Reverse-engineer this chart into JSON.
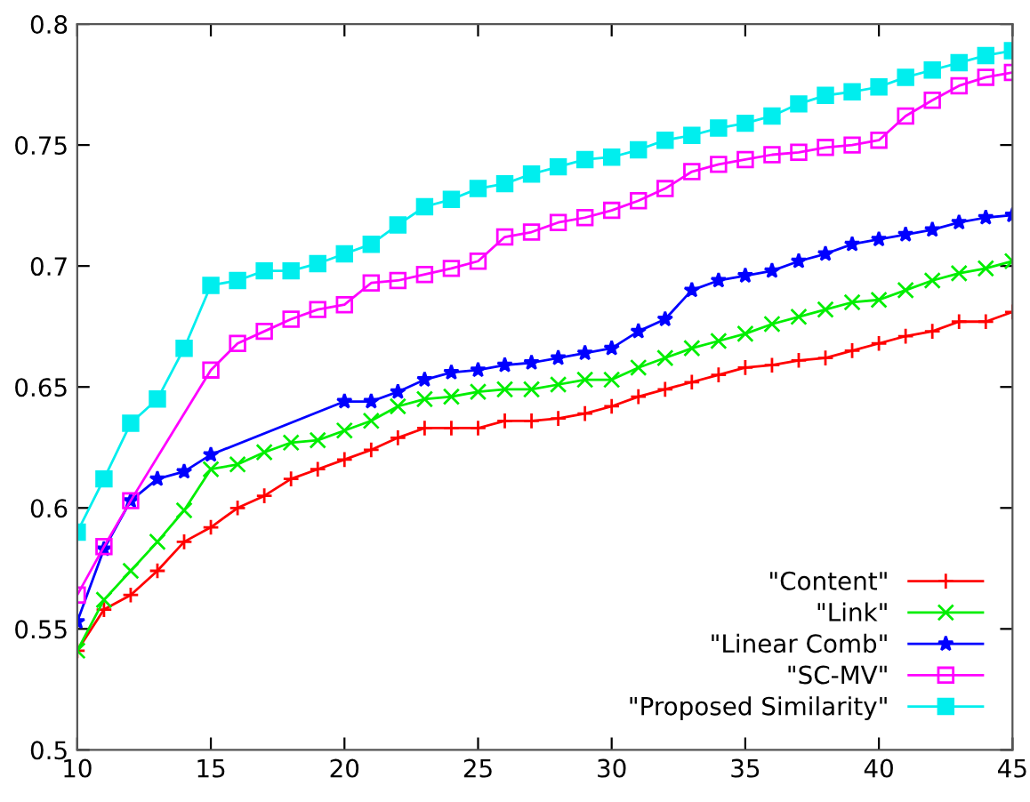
{
  "chart_data": {
    "type": "line",
    "xlim": [
      10,
      45
    ],
    "ylim": [
      0.5,
      0.8
    ],
    "xticks": [
      10,
      15,
      20,
      25,
      30,
      35,
      40,
      45
    ],
    "yticks": [
      0.5,
      0.55,
      0.6,
      0.65,
      0.7,
      0.75,
      0.8
    ],
    "grid": false,
    "legend": "bottom right",
    "line_style": "solid",
    "series": [
      {
        "name": "\"Content\"",
        "color": "#ff0000",
        "marker": "plus",
        "x": [
          10,
          11,
          12,
          13,
          14,
          15,
          16,
          17,
          18,
          19,
          20,
          21,
          22,
          23,
          24,
          25,
          26,
          27,
          28,
          29,
          30,
          31,
          32,
          33,
          34,
          35,
          36,
          37,
          38,
          39,
          40,
          41,
          42,
          43,
          44,
          45
        ],
        "values": [
          0.541,
          0.558,
          0.564,
          0.574,
          0.586,
          0.592,
          0.6,
          0.605,
          0.612,
          0.616,
          0.62,
          0.624,
          0.629,
          0.633,
          0.633,
          0.633,
          0.636,
          0.636,
          0.637,
          0.639,
          0.642,
          0.646,
          0.649,
          0.652,
          0.655,
          0.658,
          0.659,
          0.661,
          0.662,
          0.665,
          0.668,
          0.671,
          0.673,
          0.677,
          0.677,
          0.681
        ]
      },
      {
        "name": "\"Link\"",
        "color": "#00ee00",
        "marker": "cross",
        "x": [
          10,
          11,
          12,
          13,
          14,
          15,
          16,
          17,
          18,
          19,
          20,
          21,
          22,
          23,
          24,
          25,
          26,
          27,
          28,
          29,
          30,
          31,
          32,
          33,
          34,
          35,
          36,
          37,
          38,
          39,
          40,
          41,
          42,
          43,
          44,
          45
        ],
        "values": [
          0.541,
          0.562,
          0.574,
          0.586,
          0.599,
          0.616,
          0.618,
          0.623,
          0.627,
          0.628,
          0.632,
          0.636,
          0.642,
          0.645,
          0.646,
          0.648,
          0.649,
          0.649,
          0.651,
          0.653,
          0.653,
          0.658,
          0.662,
          0.666,
          0.669,
          0.672,
          0.676,
          0.679,
          0.682,
          0.685,
          0.686,
          0.69,
          0.694,
          0.697,
          0.699,
          0.702
        ]
      },
      {
        "name": "\"Linear Comb\"",
        "color": "#0000ff",
        "marker": "star",
        "x": [
          10,
          11,
          12,
          13,
          14,
          15,
          20,
          21,
          22,
          23,
          24,
          25,
          26,
          27,
          28,
          29,
          30,
          31,
          32,
          33,
          34,
          35,
          36,
          37,
          38,
          39,
          40,
          41,
          42,
          43,
          44,
          45
        ],
        "values": [
          0.553,
          0.583,
          0.603,
          0.612,
          0.615,
          0.622,
          0.644,
          0.644,
          0.648,
          0.653,
          0.656,
          0.657,
          0.659,
          0.66,
          0.662,
          0.664,
          0.666,
          0.673,
          0.678,
          0.69,
          0.694,
          0.696,
          0.698,
          0.702,
          0.705,
          0.709,
          0.711,
          0.713,
          0.715,
          0.718,
          0.72,
          0.721
        ]
      },
      {
        "name": "\"SC-MV\"",
        "color": "#ff00ff",
        "marker": "square_open",
        "x": [
          10,
          11,
          12,
          15,
          16,
          17,
          18,
          19,
          20,
          21,
          22,
          23,
          24,
          25,
          26,
          27,
          28,
          29,
          30,
          31,
          32,
          33,
          34,
          35,
          36,
          37,
          38,
          39,
          40,
          41,
          42,
          43,
          44,
          45
        ],
        "values": [
          0.564,
          0.584,
          0.603,
          0.657,
          0.668,
          0.673,
          0.678,
          0.682,
          0.684,
          0.693,
          0.694,
          0.6965,
          0.699,
          0.702,
          0.712,
          0.714,
          0.718,
          0.72,
          0.723,
          0.727,
          0.732,
          0.739,
          0.742,
          0.744,
          0.746,
          0.747,
          0.749,
          0.75,
          0.752,
          0.762,
          0.7685,
          0.7745,
          0.778,
          0.78
        ]
      },
      {
        "name": "\"Proposed Similarity\"",
        "color": "#00eeee",
        "marker": "square",
        "x": [
          10,
          11,
          12,
          13,
          14,
          15,
          16,
          17,
          18,
          19,
          20,
          21,
          22,
          23,
          24,
          25,
          26,
          27,
          28,
          29,
          30,
          31,
          32,
          33,
          34,
          35,
          36,
          37,
          38,
          39,
          40,
          41,
          42,
          43,
          44,
          45
        ],
        "values": [
          0.59,
          0.612,
          0.635,
          0.645,
          0.666,
          0.692,
          0.694,
          0.698,
          0.698,
          0.701,
          0.705,
          0.709,
          0.717,
          0.7245,
          0.7275,
          0.732,
          0.734,
          0.738,
          0.741,
          0.744,
          0.745,
          0.748,
          0.752,
          0.754,
          0.757,
          0.759,
          0.762,
          0.767,
          0.7705,
          0.772,
          0.774,
          0.778,
          0.781,
          0.784,
          0.787,
          0.789
        ]
      }
    ]
  }
}
